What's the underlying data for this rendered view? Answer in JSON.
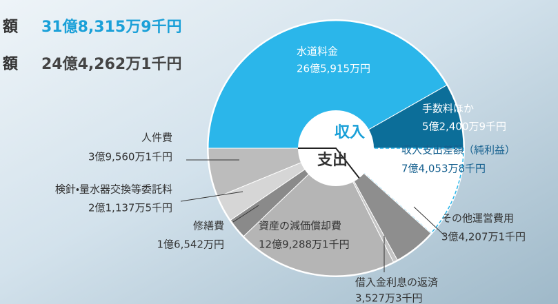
{
  "summary": [
    {
      "label": "額",
      "amount": "31億8,315万9千円"
    },
    {
      "label": "額",
      "amount": "24億4,262万1千円"
    }
  ],
  "chart_data": {
    "type": "split-pie",
    "halves": [
      {
        "name": "収入",
        "categories": [
          "水道料金",
          "手数料ほか"
        ],
        "values": [
          2659150000,
          524009000
        ],
        "value_labels": [
          "26億5,915万円",
          "5億2,400万9千円"
        ],
        "colors": [
          "#2bb6ea",
          "#0c6e99"
        ]
      },
      {
        "name": "支出",
        "categories": [
          "収入支出差額（純利益）",
          "その他運営費用",
          "借入金利息の返済",
          "資産の減価償却費",
          "修繕費",
          "検針・量水器交換等委託料",
          "人件費"
        ],
        "values": [
          740538000,
          342071000,
          35273000,
          1292881000,
          165420000,
          211375000,
          395601000
        ],
        "value_labels": [
          "7億4,053万8千円",
          "3億4,207万1千円",
          "3,527万3千円",
          "12億9,288万1千円",
          "1億6,542万円",
          "2億1,137万5千円",
          "3億9,560万1千円"
        ],
        "colors": [
          "#ffffff",
          "#8e8e8e",
          "#c4c4c4",
          "#b5b5b5",
          "#8a8a8a",
          "#d6d6d6",
          "#bcbcbc"
        ]
      }
    ]
  }
}
